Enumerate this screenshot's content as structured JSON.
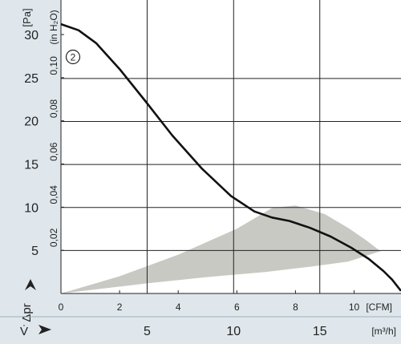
{
  "chart_data": {
    "type": "line",
    "title": "",
    "left_axis": {
      "unit": "[Pa]",
      "symbol": "Δpr",
      "ticks": [
        "5",
        "10",
        "15",
        "20",
        "25",
        "30"
      ],
      "tick_values": [
        5,
        10,
        15,
        20,
        25,
        30
      ],
      "range": [
        0,
        34
      ]
    },
    "left_axis_secondary": {
      "unit": "(in H₂O)",
      "ticks": [
        "0,02",
        "0,04",
        "0,06",
        "0,08",
        "0,10"
      ],
      "tick_values_pa": [
        4.98,
        9.96,
        14.94,
        19.93,
        24.91
      ]
    },
    "bottom_axis": {
      "unit": "[CFM]",
      "ticks": [
        "0",
        "2",
        "4",
        "6",
        "8",
        "10"
      ],
      "tick_values": [
        0,
        2,
        4,
        6,
        8,
        10
      ],
      "range": [
        0,
        11.6
      ]
    },
    "bottom_axis_secondary": {
      "symbol": "V̇",
      "unit": "[m³/h]",
      "ticks": [
        "5",
        "10",
        "15"
      ],
      "tick_values_cfm": [
        2.94,
        5.89,
        8.83
      ]
    },
    "grid": true,
    "series": [
      {
        "name": "2",
        "x": [
          0,
          0.6,
          1.2,
          2.0,
          2.9,
          3.8,
          4.8,
          5.8,
          6.6,
          7.2,
          7.8,
          8.5,
          9.2,
          9.9,
          10.5,
          11.0,
          11.3,
          11.6
        ],
        "y": [
          31.2,
          30.5,
          29,
          26,
          22.2,
          18.3,
          14.5,
          11.3,
          9.5,
          8.8,
          8.4,
          7.6,
          6.6,
          5.3,
          4.0,
          2.6,
          1.6,
          0.3
        ]
      }
    ],
    "operating_zone": {
      "upper": {
        "x": [
          0,
          2,
          4,
          6,
          7.2,
          8.0,
          9.0,
          9.8,
          10.4,
          10.9
        ],
        "y": [
          0,
          2.0,
          4.5,
          7.5,
          9.9,
          10.2,
          9.2,
          7.6,
          6.2,
          4.9
        ]
      },
      "lower": {
        "x": [
          0,
          3,
          5,
          7,
          8.5,
          9.8,
          10.9
        ],
        "y": [
          0,
          1.2,
          1.9,
          2.5,
          3.1,
          3.7,
          4.9
        ]
      },
      "color": "#c9c9c4"
    },
    "curve_label": "2",
    "curve_color": "#111111"
  }
}
